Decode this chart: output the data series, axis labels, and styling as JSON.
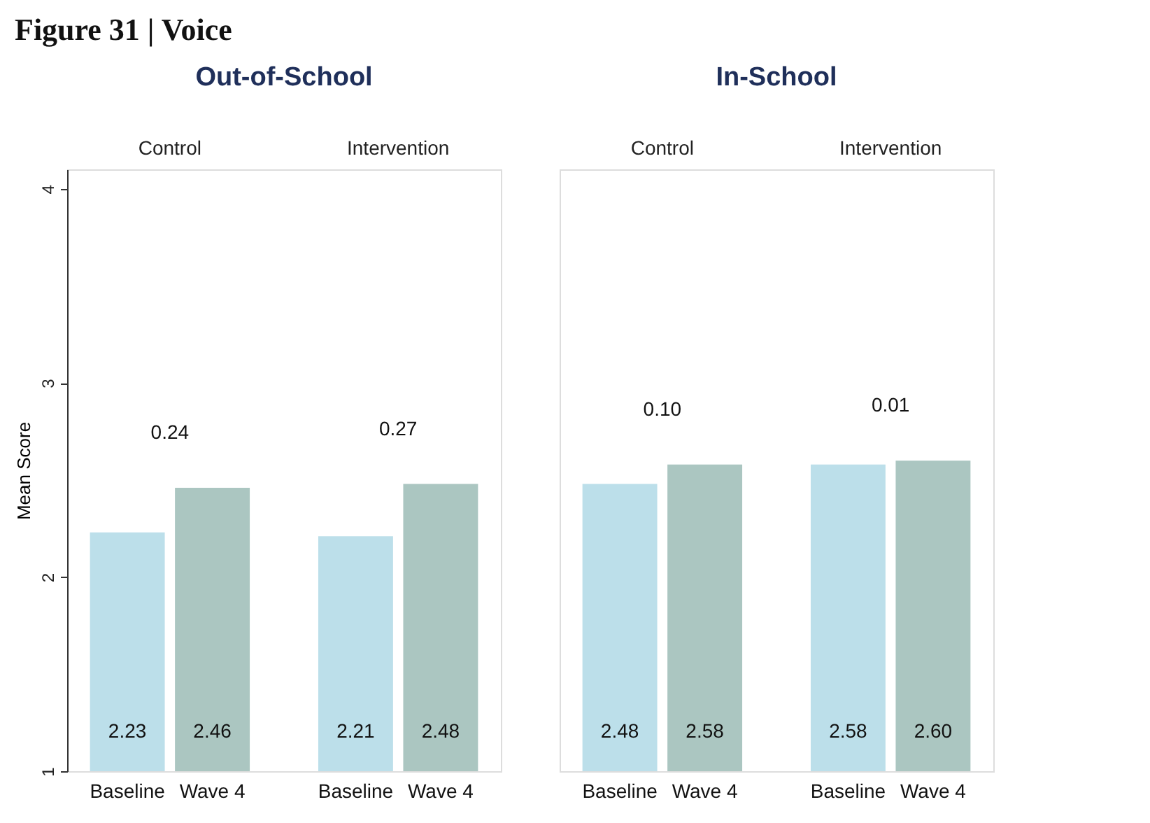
{
  "chart_data": [
    {
      "type": "bar",
      "title": "Out-of-School",
      "ylabel": "Mean Score",
      "categories": [
        "Control",
        "Intervention"
      ],
      "series": [
        {
          "name": "Baseline",
          "color": "#bcdfea",
          "values": [
            2.23,
            2.21
          ],
          "value_labels": [
            "2.23",
            "2.21"
          ]
        },
        {
          "name": "Wave 4",
          "color": "#abc6c1",
          "values": [
            2.46,
            2.48
          ],
          "value_labels": [
            "2.46",
            "2.48"
          ]
        }
      ],
      "ylim": [
        1,
        4.1
      ],
      "yticks": [
        1,
        2,
        3,
        4
      ],
      "grid": false,
      "annotations": [
        "Figure 31 | Voice",
        "0.24",
        "0.27"
      ]
    },
    {
      "type": "bar",
      "title": "In-School",
      "categories": [
        "Control",
        "Intervention"
      ],
      "series": [
        {
          "name": "Baseline",
          "color": "#bcdfea",
          "values": [
            2.48,
            2.58
          ],
          "value_labels": [
            "2.48",
            "2.58"
          ]
        },
        {
          "name": "Wave 4",
          "color": "#abc6c1",
          "values": [
            2.58,
            2.6
          ],
          "value_labels": [
            "2.58",
            "2.60"
          ]
        }
      ],
      "ylim": [
        1,
        4.1
      ],
      "yticks": [
        1,
        2,
        3,
        4
      ],
      "grid": false,
      "tick_labels": "x",
      "annotations": [
        "0.10",
        "0.01"
      ]
    }
  ]
}
